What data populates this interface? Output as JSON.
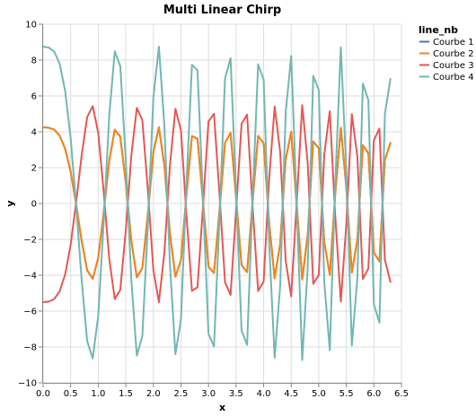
{
  "chart_data": {
    "type": "line",
    "title": "Multi Linear Chirp",
    "xlabel": "x",
    "ylabel": "y",
    "xlim": [
      0,
      6.5
    ],
    "ylim": [
      -10,
      10
    ],
    "xticks": [
      "0.0",
      "0.5",
      "1.0",
      "1.5",
      "2.0",
      "2.5",
      "3.0",
      "3.5",
      "4.0",
      "4.5",
      "5.0",
      "5.5",
      "6.0",
      "6.5"
    ],
    "yticks": [
      "−10",
      "−8",
      "−6",
      "−4",
      "−2",
      "0",
      "2",
      "4",
      "6",
      "8",
      "10"
    ],
    "grid": true,
    "legend_title": "line_nb",
    "legend_position": "right",
    "x": [
      0.0,
      0.1,
      0.2,
      0.3,
      0.4,
      0.5,
      0.6,
      0.7,
      0.8,
      0.9,
      1.0,
      1.1,
      1.2,
      1.3,
      1.4,
      1.5,
      1.6,
      1.7,
      1.8,
      1.9,
      2.0,
      2.1,
      2.2,
      2.3,
      2.4,
      2.5,
      2.6,
      2.7,
      2.8,
      2.9,
      3.0,
      3.1,
      3.2,
      3.3,
      3.4,
      3.5,
      3.6,
      3.7,
      3.8,
      3.9,
      4.0,
      4.1,
      4.2,
      4.3,
      4.4,
      4.5,
      4.6,
      4.7,
      4.8,
      4.9,
      5.0,
      5.1,
      5.2,
      5.3,
      5.4,
      5.5,
      5.6,
      5.7,
      5.8,
      5.9,
      6.0,
      6.1,
      6.2,
      6.3
    ],
    "series": [
      {
        "name": "Courbe 1",
        "color": "#4c78a8",
        "values": [
          4.25,
          4.23,
          4.12,
          3.79,
          3.05,
          1.77,
          -0.06,
          -2.09,
          -3.73,
          -4.2,
          -3.04,
          -0.47,
          2.39,
          4.12,
          3.72,
          1.16,
          -2.07,
          -4.12,
          -3.59,
          -0.59,
          2.87,
          4.25,
          2.11,
          -1.63,
          -4.08,
          -3.16,
          0.49,
          3.76,
          3.61,
          0.13,
          -3.53,
          -3.87,
          -0.38,
          3.39,
          3.94,
          0.32,
          -3.44,
          -3.83,
          0.12,
          3.77,
          3.36,
          -1.07,
          -4.18,
          -2.23,
          2.46,
          4.0,
          -0.05,
          -4.24,
          -1.72,
          3.46,
          3.08,
          -2.12,
          -3.98,
          0.57,
          4.23,
          0.89,
          -3.85,
          -2.03,
          3.25,
          2.8,
          -2.73,
          -3.23,
          2.43,
          3.38
        ]
      },
      {
        "name": "Courbe 2",
        "color": "#f58518",
        "values": [
          4.25,
          4.23,
          4.12,
          3.79,
          3.05,
          1.77,
          -0.06,
          -2.09,
          -3.73,
          -4.2,
          -3.04,
          -0.47,
          2.39,
          4.12,
          3.72,
          1.16,
          -2.07,
          -4.12,
          -3.59,
          -0.59,
          2.87,
          4.25,
          2.11,
          -1.63,
          -4.08,
          -3.16,
          0.49,
          3.76,
          3.61,
          0.13,
          -3.53,
          -3.87,
          -0.38,
          3.39,
          3.94,
          0.32,
          -3.44,
          -3.83,
          0.12,
          3.77,
          3.36,
          -1.07,
          -4.18,
          -2.23,
          2.46,
          4.0,
          -0.05,
          -4.24,
          -1.72,
          3.46,
          3.08,
          -2.12,
          -3.98,
          0.57,
          4.23,
          0.89,
          -3.85,
          -2.03,
          3.25,
          2.8,
          -2.73,
          -3.23,
          2.43,
          3.38
        ]
      },
      {
        "name": "Courbe 3",
        "color": "#e45756",
        "values": [
          -5.5,
          -5.47,
          -5.33,
          -4.9,
          -3.95,
          -2.29,
          0.08,
          2.71,
          4.83,
          5.43,
          3.94,
          0.61,
          -3.09,
          -5.33,
          -4.81,
          -1.5,
          2.68,
          5.33,
          4.65,
          0.76,
          -3.71,
          -5.5,
          -2.73,
          2.11,
          5.28,
          4.09,
          -0.63,
          -4.87,
          -4.67,
          -0.17,
          4.57,
          5.01,
          0.49,
          -4.39,
          -5.1,
          -0.41,
          4.45,
          4.96,
          -0.16,
          -4.88,
          -4.35,
          1.38,
          5.41,
          2.89,
          -3.18,
          -5.18,
          0.06,
          5.49,
          2.23,
          -4.48,
          -3.99,
          2.74,
          5.15,
          -0.74,
          -5.47,
          -1.15,
          4.98,
          2.63,
          -4.21,
          -3.62,
          3.53,
          4.18,
          -3.14,
          -4.37
        ]
      },
      {
        "name": "Courbe 4",
        "color": "#72b7b2",
        "values": [
          8.75,
          8.7,
          8.48,
          7.8,
          6.28,
          3.64,
          -0.12,
          -4.3,
          -7.68,
          -8.64,
          -6.26,
          -0.97,
          4.92,
          8.48,
          7.66,
          2.39,
          -4.26,
          -8.48,
          -7.39,
          -1.21,
          5.91,
          8.75,
          4.34,
          -3.36,
          -8.4,
          -6.5,
          1.01,
          7.74,
          7.43,
          0.27,
          -7.27,
          -7.97,
          -0.78,
          6.98,
          8.11,
          0.66,
          -7.08,
          -7.88,
          0.25,
          7.76,
          6.92,
          -2.2,
          -8.6,
          -4.59,
          5.06,
          8.23,
          -0.1,
          -8.73,
          -3.54,
          7.12,
          6.34,
          -4.36,
          -8.19,
          1.17,
          8.71,
          1.83,
          -7.92,
          -4.18,
          6.69,
          5.76,
          -5.62,
          -6.65,
          5.0,
          6.95
        ]
      }
    ]
  }
}
